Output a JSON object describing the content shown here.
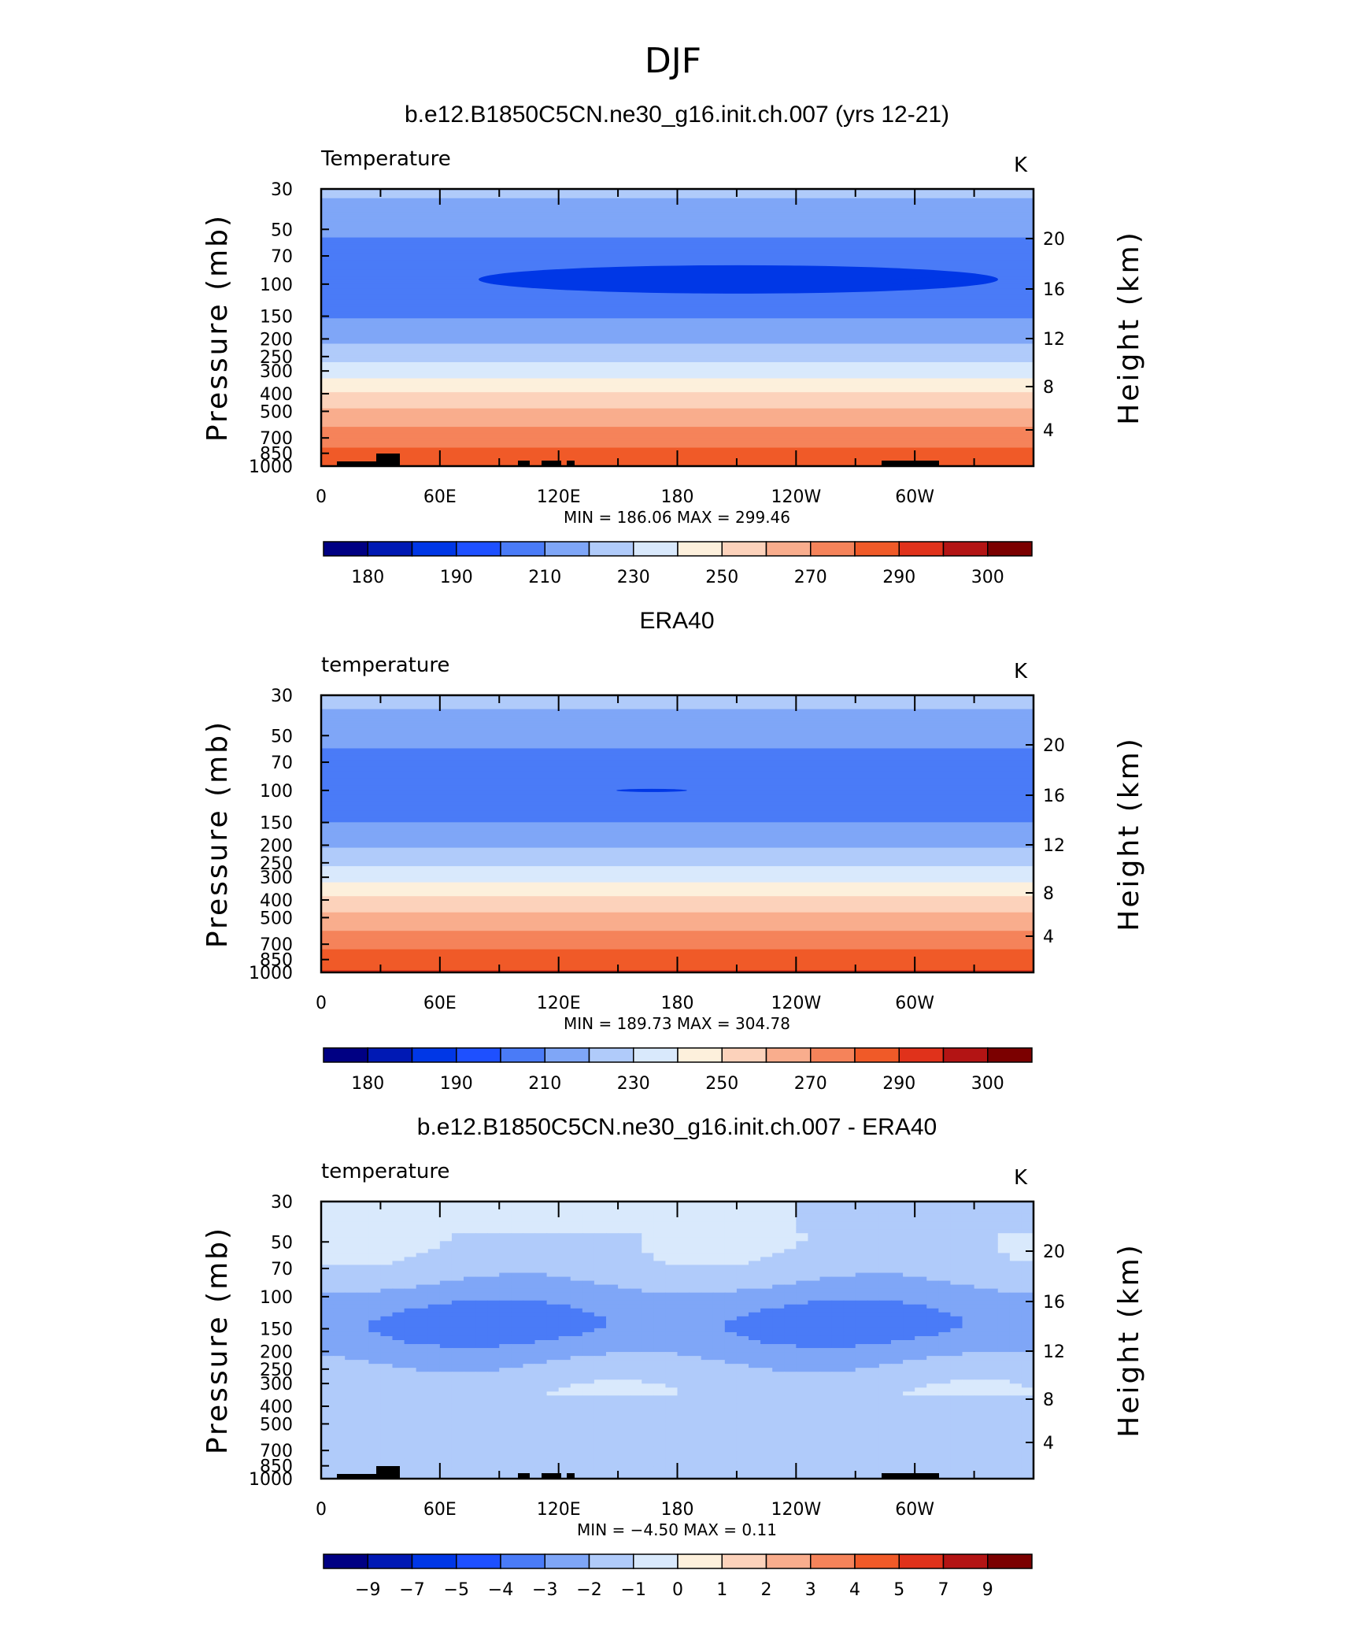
{
  "figure_title": "DJF",
  "colors": {
    "temp_scale": [
      "#000083",
      "#0019b4",
      "#0037e6",
      "#1e50ff",
      "#4a7bf7",
      "#7fa6f7",
      "#b0cbfa",
      "#d9e9fc",
      "#fdf0dc",
      "#fcd2bb",
      "#f9ad8d",
      "#f5835a",
      "#f05a28",
      "#e0321b",
      "#b31414",
      "#7b0000"
    ],
    "panel_border": "#000000",
    "topography": "#000000"
  },
  "panels": [
    {
      "title": "b.e12.B1850C5CN.ne30_g16.init.ch.007 (yrs 12-21)",
      "left_label": "Temperature",
      "right_label": "K",
      "stats": "MIN =  186.06   MAX =  299.46"
    },
    {
      "title": "ERA40",
      "left_label": "temperature",
      "right_label": "K",
      "stats": "MIN =  189.73   MAX =  304.78"
    },
    {
      "title": "b.e12.B1850C5CN.ne30_g16.init.ch.007 - ERA40",
      "left_label": "temperature",
      "right_label": "K",
      "stats": "MIN =   −4.50   MAX =     0.11"
    }
  ],
  "chart_data": [
    {
      "type": "heatmap",
      "title": "b.e12.B1850C5CN.ne30_g16.init.ch.007 (yrs 12-21)",
      "xlabel": "",
      "ylabel": "Pressure (mb)",
      "y2label": "Height (km)",
      "x_ticks": [
        "0",
        "60E",
        "120E",
        "180",
        "120W",
        "60W"
      ],
      "y_ticks": [
        30,
        50,
        70,
        100,
        150,
        200,
        250,
        300,
        400,
        500,
        700,
        850,
        1000
      ],
      "y2_ticks": [
        20,
        16,
        12,
        8,
        4
      ],
      "ylim": [
        30,
        1000
      ],
      "yscale": "log",
      "min": 186.06,
      "max": 299.46,
      "levels": [
        180,
        185,
        190,
        200,
        210,
        220,
        230,
        240,
        250,
        260,
        270,
        280,
        290,
        295,
        300
      ],
      "level_labels": [
        "180",
        "190",
        "210",
        "230",
        "250",
        "270",
        "290",
        "300"
      ],
      "profile_pressure": [
        30,
        40,
        50,
        70,
        100,
        130,
        150,
        200,
        250,
        300,
        350,
        400,
        500,
        600,
        700,
        850,
        1000
      ],
      "profile_temperature": [
        222,
        217,
        212,
        205,
        202,
        205,
        209,
        217,
        226,
        235,
        243,
        252,
        262,
        270,
        276,
        283,
        290
      ]
    },
    {
      "type": "heatmap",
      "title": "ERA40",
      "xlabel": "",
      "ylabel": "Pressure (mb)",
      "y2label": "Height (km)",
      "x_ticks": [
        "0",
        "60E",
        "120E",
        "180",
        "120W",
        "60W"
      ],
      "y_ticks": [
        30,
        50,
        70,
        100,
        150,
        200,
        250,
        300,
        400,
        500,
        700,
        850,
        1000
      ],
      "y2_ticks": [
        20,
        16,
        12,
        8,
        4
      ],
      "ylim": [
        30,
        1000
      ],
      "yscale": "log",
      "min": 189.73,
      "max": 304.78,
      "levels": [
        180,
        185,
        190,
        200,
        210,
        220,
        230,
        240,
        250,
        260,
        270,
        280,
        290,
        295,
        300
      ],
      "level_labels": [
        "180",
        "190",
        "210",
        "230",
        "250",
        "270",
        "290",
        "300"
      ]
    },
    {
      "type": "heatmap",
      "title": "b.e12.B1850C5CN.ne30_g16.init.ch.007 - ERA40",
      "xlabel": "",
      "ylabel": "Pressure (mb)",
      "y2label": "Height (km)",
      "x_ticks": [
        "0",
        "60E",
        "120E",
        "180",
        "120W",
        "60W"
      ],
      "y_ticks": [
        30,
        50,
        70,
        100,
        150,
        200,
        250,
        300,
        400,
        500,
        700,
        850,
        1000
      ],
      "y2_ticks": [
        20,
        16,
        12,
        8,
        4
      ],
      "ylim": [
        30,
        1000
      ],
      "yscale": "log",
      "min": -4.5,
      "max": 0.11,
      "levels": [
        -9,
        -8,
        -7,
        -6,
        -5,
        -4,
        -3,
        -2,
        -1,
        0,
        1,
        2,
        3,
        4,
        5,
        7,
        9
      ],
      "level_labels": [
        "−9",
        "−7",
        "−5",
        "−4",
        "−3",
        "−2",
        "−1",
        "0",
        "1",
        "2",
        "3",
        "4",
        "5",
        "7",
        "9"
      ]
    }
  ]
}
